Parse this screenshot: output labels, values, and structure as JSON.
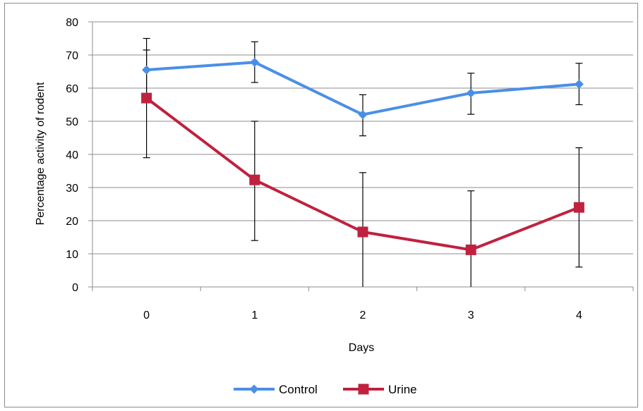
{
  "chart_data": {
    "type": "line",
    "title": "",
    "xlabel": "Days",
    "ylabel": "Percentage activity  of rodent",
    "x": [
      0,
      1,
      2,
      3,
      4
    ],
    "categories": [
      "0",
      "1",
      "2",
      "3",
      "4"
    ],
    "ylim": [
      0,
      80
    ],
    "yticks": [
      0,
      10,
      20,
      30,
      40,
      50,
      60,
      70,
      80
    ],
    "grid": true,
    "legend_position": "bottom",
    "series": [
      {
        "name": "Control",
        "color": "#4a8fe6",
        "marker": "diamond",
        "values": [
          65.5,
          67.8,
          52.0,
          58.5,
          61.2
        ],
        "error_low": [
          56.0,
          61.7,
          45.6,
          52.1,
          55.0
        ],
        "error_high": [
          75.0,
          74.0,
          58.0,
          64.5,
          67.5
        ]
      },
      {
        "name": "Urine",
        "color": "#c0213f",
        "marker": "square",
        "values": [
          57.0,
          32.3,
          16.6,
          11.2,
          24.0
        ],
        "error_low": [
          39.0,
          14.0,
          0.0,
          0.0,
          6.0
        ],
        "error_high": [
          71.5,
          50.0,
          34.5,
          29.0,
          42.0
        ]
      }
    ]
  }
}
